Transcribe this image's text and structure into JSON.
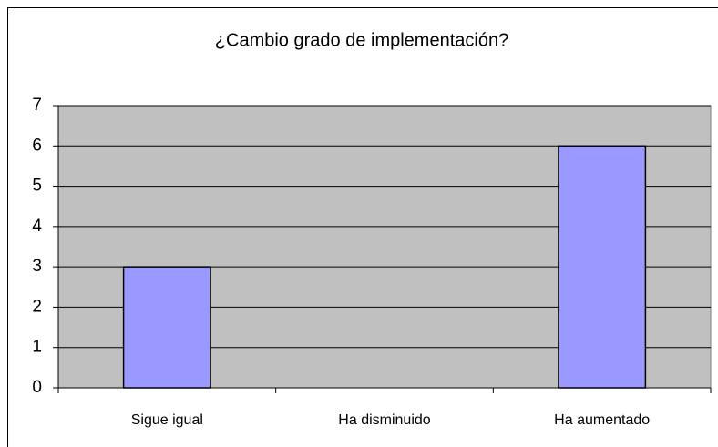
{
  "chart_data": {
    "type": "bar",
    "title": "¿Cambio grado de implementación?",
    "categories": [
      "Sigue igual",
      "Ha disminuido",
      "Ha aumentado"
    ],
    "values": [
      3,
      0,
      6
    ],
    "color": "#9999ff",
    "ylim": [
      0,
      7
    ],
    "yticks": [
      0,
      1,
      2,
      3,
      4,
      5,
      6,
      7
    ],
    "grid": true
  }
}
